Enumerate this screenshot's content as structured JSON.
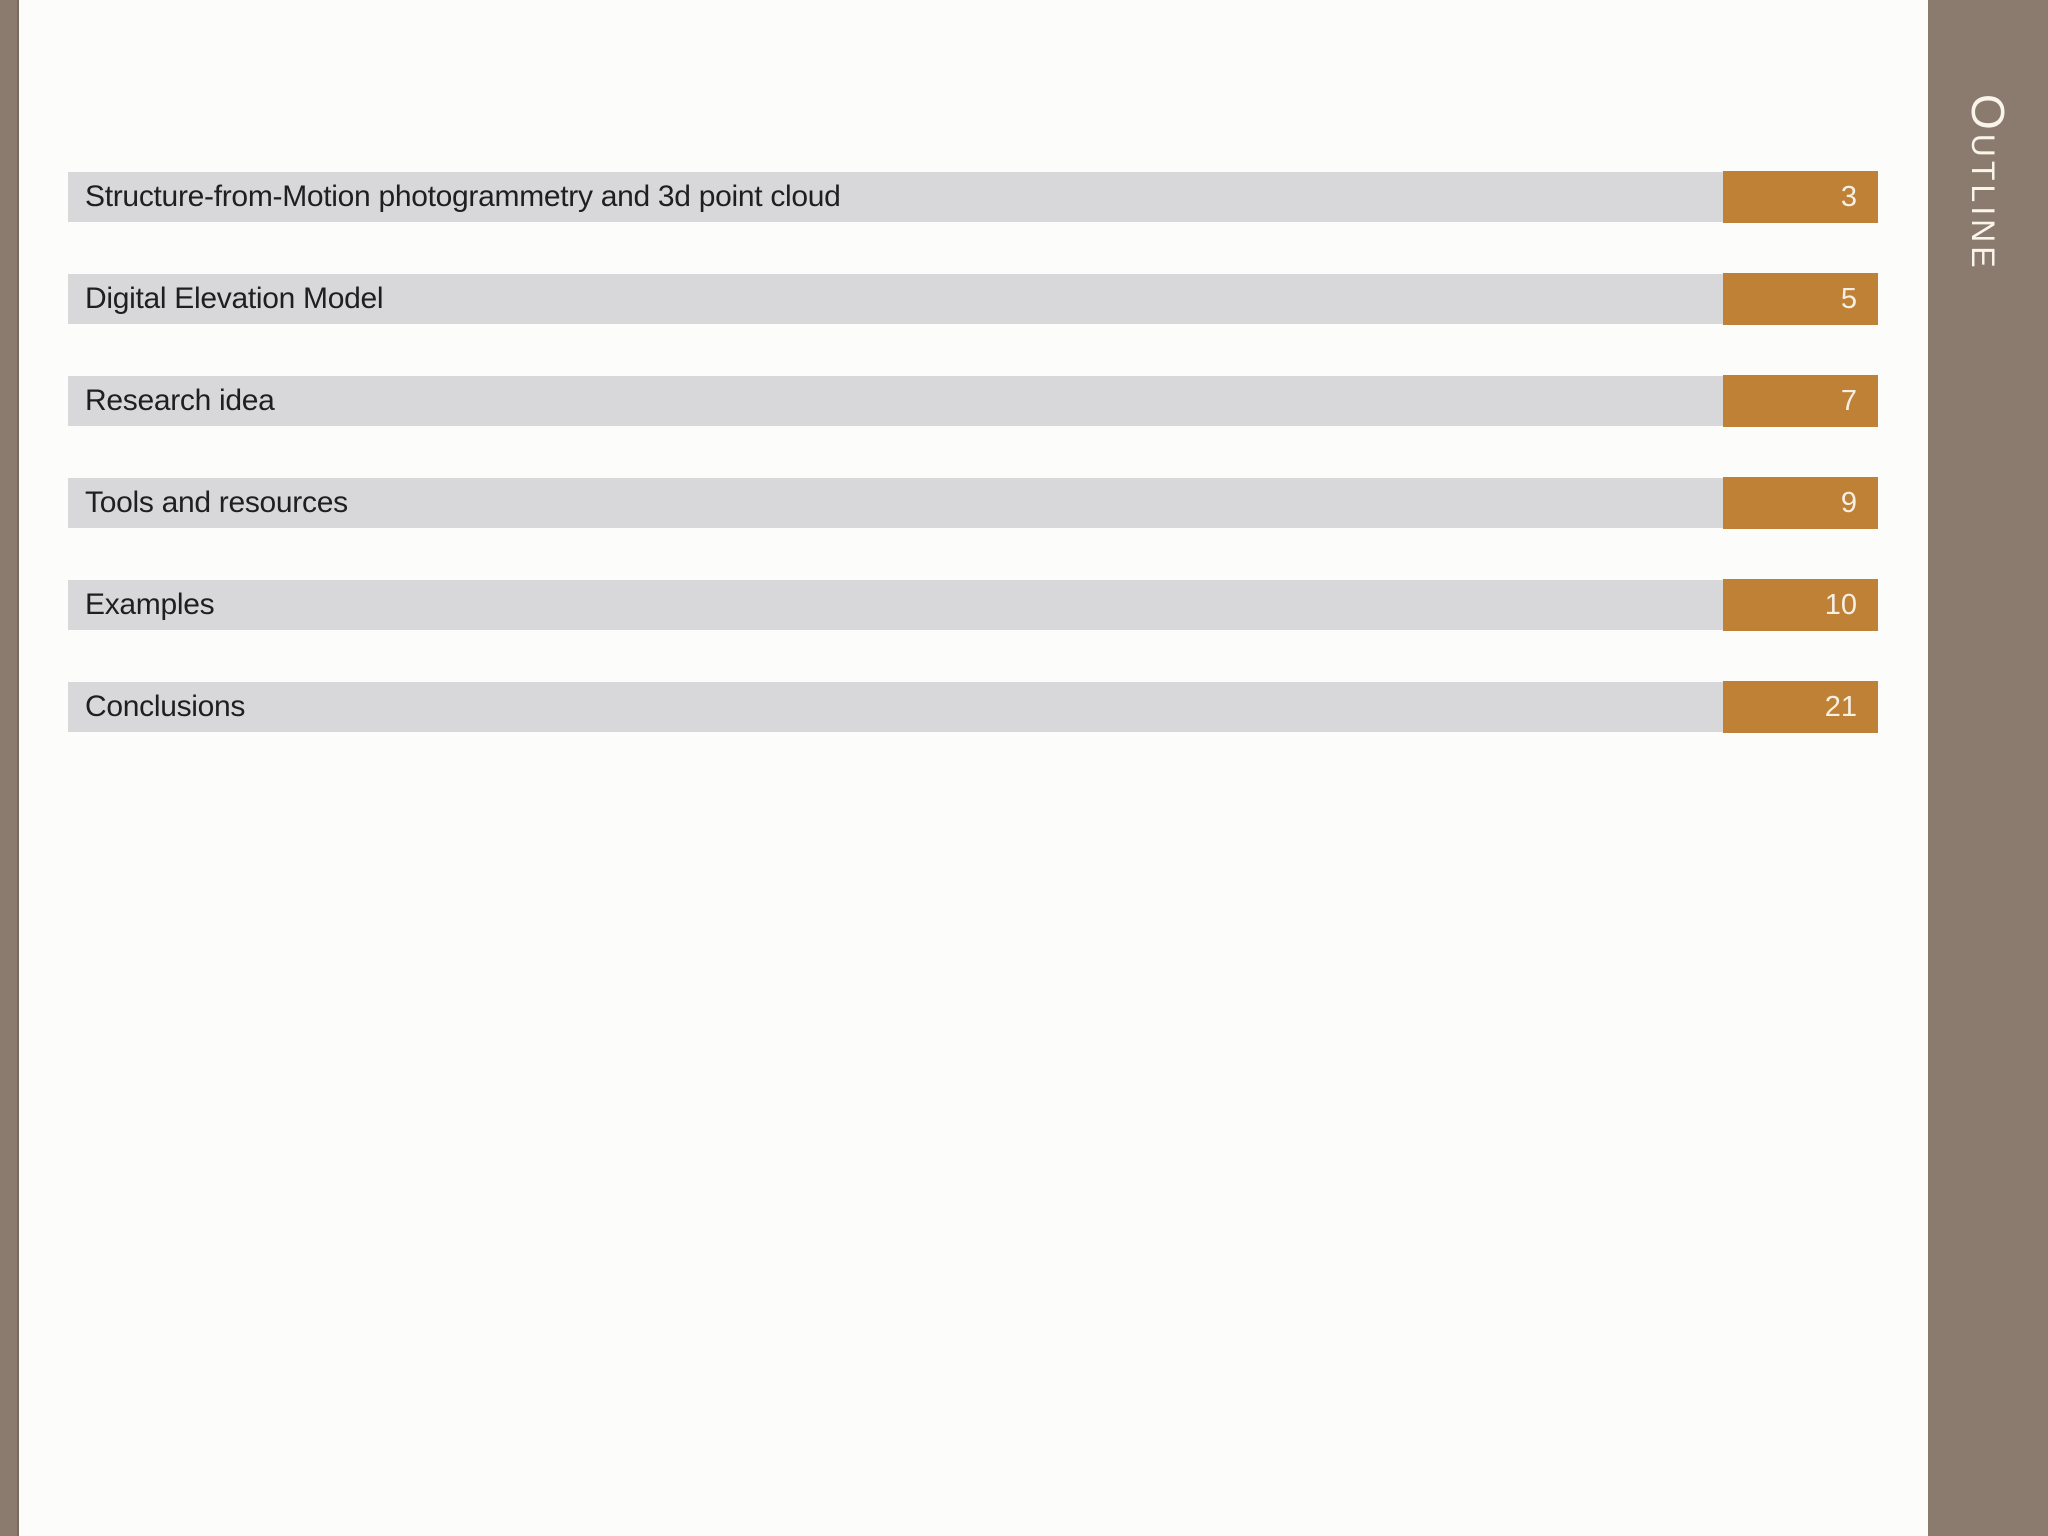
{
  "slide": {
    "type": "presentation-outline-slide"
  },
  "sidebar": {
    "title": "Outline"
  },
  "toc": {
    "items": [
      {
        "label": "Structure-from-Motion photogrammetry and 3d point cloud",
        "page": "3"
      },
      {
        "label": "Digital Elevation Model",
        "page": "5"
      },
      {
        "label": "Research idea",
        "page": "7"
      },
      {
        "label": "Tools and resources",
        "page": "9"
      },
      {
        "label": "Examples",
        "page": "10"
      },
      {
        "label": "Conclusions",
        "page": "21"
      }
    ]
  },
  "colors": {
    "background": "#fcfdfb",
    "sidebar": "#8b7a6e",
    "bar_gray": "#d8d8da",
    "accent_orange": "#bf8136",
    "bar_text": "#1f1f1f",
    "page_text": "#f6f0e4",
    "sidebar_title_text": "#faf5eb"
  }
}
